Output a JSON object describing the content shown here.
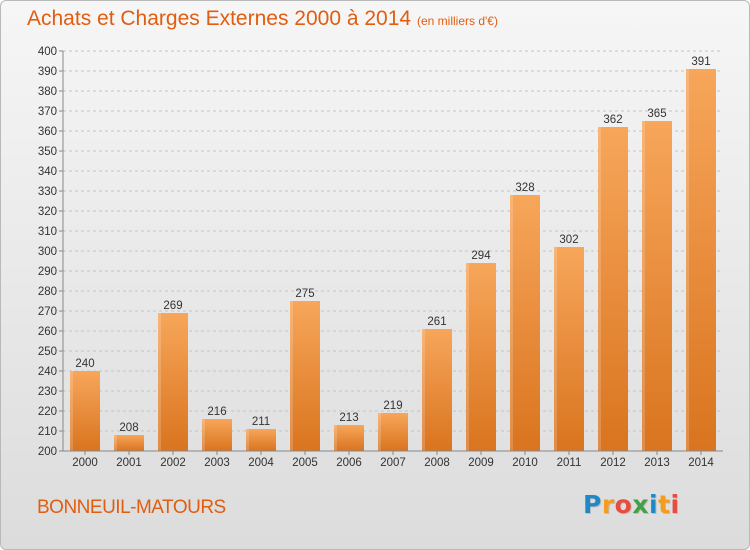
{
  "header": {
    "title": "Achats et Charges Externes 2000 à 2014",
    "subtitle": "(en milliers d'€)"
  },
  "footer": {
    "city": "BONNEUIL-MATOURS",
    "logo_letters": [
      "P",
      "r",
      "o",
      "x",
      "i",
      "t",
      "i"
    ],
    "logo_colors": [
      "#1e88c8",
      "#f39c1d",
      "#e94b3c",
      "#43a047",
      "#1e88c8",
      "#f39c1d",
      "#e94b3c"
    ]
  },
  "colors": {
    "bar_light": "#f7a65a",
    "bar_dark": "#d9741f",
    "accent_text": "#e15d10"
  },
  "chart_data": {
    "type": "bar",
    "title": "Achats et Charges Externes 2000 à 2014",
    "subtitle": "(en milliers d'€)",
    "categories": [
      "2000",
      "2001",
      "2002",
      "2003",
      "2004",
      "2005",
      "2006",
      "2007",
      "2008",
      "2009",
      "2010",
      "2011",
      "2012",
      "2013",
      "2014"
    ],
    "values": [
      240,
      208,
      269,
      216,
      211,
      275,
      213,
      219,
      261,
      294,
      328,
      302,
      362,
      365,
      391
    ],
    "data_labels": [
      "240",
      "208",
      "269",
      "216",
      "211",
      "275",
      "213",
      "219",
      "261",
      "294",
      "328",
      "302",
      "362",
      "365",
      "391"
    ],
    "y_ticks": [
      "200",
      "210",
      "220",
      "230",
      "240",
      "250",
      "260",
      "270",
      "280",
      "290",
      "300",
      "310",
      "320",
      "330",
      "340",
      "350",
      "360",
      "370",
      "380",
      "390",
      "400"
    ],
    "ylim": [
      200,
      400
    ],
    "grid": true,
    "xlabel": "",
    "ylabel": ""
  }
}
